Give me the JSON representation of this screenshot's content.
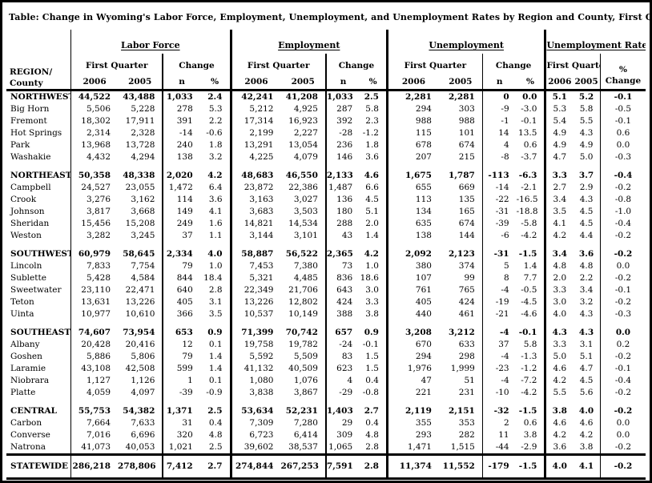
{
  "title": "Table:  Change in Wyoming's Labor Force, Employment, Unemployment, and Unemployment Rates by Region and County, First Quarter 2006",
  "header": {
    "region_line1": "REGION/",
    "region_line2": "County",
    "groups": [
      {
        "label": "Labor Force",
        "sub1": "First Quarter",
        "sub2": "Change",
        "cols": [
          "2006",
          "2005",
          "n",
          "%"
        ]
      },
      {
        "label": "Employment",
        "sub1": "First Quarter",
        "sub2": "Change",
        "cols": [
          "2006",
          "2005",
          "n",
          "%"
        ]
      },
      {
        "label": "Unemployment",
        "sub1": "First Quarter",
        "sub2": "Change",
        "cols": [
          "2006",
          "2005",
          "n",
          "%"
        ]
      },
      {
        "label": "Unemployment Rate",
        "sub1": "First Quarter",
        "sub2": "%",
        "sub2_line2": "Change",
        "cols": [
          "2006",
          "2005"
        ]
      }
    ]
  },
  "sections": [
    {
      "region": [
        "NORTHWEST",
        "44,522",
        "43,488",
        "1,033",
        "2.4",
        "42,241",
        "41,208",
        "1,033",
        "2.5",
        "2,281",
        "2,281",
        "0",
        "0.0",
        "5.1",
        "5.2",
        "-0.1"
      ],
      "counties": [
        [
          "Big Horn",
          "5,506",
          "5,228",
          "278",
          "5.3",
          "5,212",
          "4,925",
          "287",
          "5.8",
          "294",
          "303",
          "-9",
          "-3.0",
          "5.3",
          "5.8",
          "-0.5"
        ],
        [
          "Fremont",
          "18,302",
          "17,911",
          "391",
          "2.2",
          "17,314",
          "16,923",
          "392",
          "2.3",
          "988",
          "988",
          "-1",
          "-0.1",
          "5.4",
          "5.5",
          "-0.1"
        ],
        [
          "Hot Springs",
          "2,314",
          "2,328",
          "-14",
          "-0.6",
          "2,199",
          "2,227",
          "-28",
          "-1.2",
          "115",
          "101",
          "14",
          "13.5",
          "4.9",
          "4.3",
          "0.6"
        ],
        [
          "Park",
          "13,968",
          "13,728",
          "240",
          "1.8",
          "13,291",
          "13,054",
          "236",
          "1.8",
          "678",
          "674",
          "4",
          "0.6",
          "4.9",
          "4.9",
          "0.0"
        ],
        [
          "Washakie",
          "4,432",
          "4,294",
          "138",
          "3.2",
          "4,225",
          "4,079",
          "146",
          "3.6",
          "207",
          "215",
          "-8",
          "-3.7",
          "4.7",
          "5.0",
          "-0.3"
        ]
      ]
    },
    {
      "region": [
        "NORTHEAST",
        "50,358",
        "48,338",
        "2,020",
        "4.2",
        "48,683",
        "46,550",
        "2,133",
        "4.6",
        "1,675",
        "1,787",
        "-113",
        "-6.3",
        "3.3",
        "3.7",
        "-0.4"
      ],
      "counties": [
        [
          "Campbell",
          "24,527",
          "23,055",
          "1,472",
          "6.4",
          "23,872",
          "22,386",
          "1,487",
          "6.6",
          "655",
          "669",
          "-14",
          "-2.1",
          "2.7",
          "2.9",
          "-0.2"
        ],
        [
          "Crook",
          "3,276",
          "3,162",
          "114",
          "3.6",
          "3,163",
          "3,027",
          "136",
          "4.5",
          "113",
          "135",
          "-22",
          "-16.5",
          "3.4",
          "4.3",
          "-0.8"
        ],
        [
          "Johnson",
          "3,817",
          "3,668",
          "149",
          "4.1",
          "3,683",
          "3,503",
          "180",
          "5.1",
          "134",
          "165",
          "-31",
          "-18.8",
          "3.5",
          "4.5",
          "-1.0"
        ],
        [
          "Sheridan",
          "15,456",
          "15,208",
          "249",
          "1.6",
          "14,821",
          "14,534",
          "288",
          "2.0",
          "635",
          "674",
          "-39",
          "-5.8",
          "4.1",
          "4.5",
          "-0.4"
        ],
        [
          "Weston",
          "3,282",
          "3,245",
          "37",
          "1.1",
          "3,144",
          "3,101",
          "43",
          "1.4",
          "138",
          "144",
          "-6",
          "-4.2",
          "4.2",
          "4.4",
          "-0.2"
        ]
      ]
    },
    {
      "region": [
        "SOUTHWEST",
        "60,979",
        "58,645",
        "2,334",
        "4.0",
        "58,887",
        "56,522",
        "2,365",
        "4.2",
        "2,092",
        "2,123",
        "-31",
        "-1.5",
        "3.4",
        "3.6",
        "-0.2"
      ],
      "counties": [
        [
          "Lincoln",
          "7,833",
          "7,754",
          "79",
          "1.0",
          "7,453",
          "7,380",
          "73",
          "1.0",
          "380",
          "374",
          "5",
          "1.4",
          "4.8",
          "4.8",
          "0.0"
        ],
        [
          "Sublette",
          "5,428",
          "4,584",
          "844",
          "18.4",
          "5,321",
          "4,485",
          "836",
          "18.6",
          "107",
          "99",
          "8",
          "7.7",
          "2.0",
          "2.2",
          "-0.2"
        ],
        [
          "Sweetwater",
          "23,110",
          "22,471",
          "640",
          "2.8",
          "22,349",
          "21,706",
          "643",
          "3.0",
          "761",
          "765",
          "-4",
          "-0.5",
          "3.3",
          "3.4",
          "-0.1"
        ],
        [
          "Teton",
          "13,631",
          "13,226",
          "405",
          "3.1",
          "13,226",
          "12,802",
          "424",
          "3.3",
          "405",
          "424",
          "-19",
          "-4.5",
          "3.0",
          "3.2",
          "-0.2"
        ],
        [
          "Uinta",
          "10,977",
          "10,610",
          "366",
          "3.5",
          "10,537",
          "10,149",
          "388",
          "3.8",
          "440",
          "461",
          "-21",
          "-4.6",
          "4.0",
          "4.3",
          "-0.3"
        ]
      ]
    },
    {
      "region": [
        "SOUTHEAST",
        "74,607",
        "73,954",
        "653",
        "0.9",
        "71,399",
        "70,742",
        "657",
        "0.9",
        "3,208",
        "3,212",
        "-4",
        "-0.1",
        "4.3",
        "4.3",
        "0.0"
      ],
      "counties": [
        [
          "Albany",
          "20,428",
          "20,416",
          "12",
          "0.1",
          "19,758",
          "19,782",
          "-24",
          "-0.1",
          "670",
          "633",
          "37",
          "5.8",
          "3.3",
          "3.1",
          "0.2"
        ],
        [
          "Goshen",
          "5,886",
          "5,806",
          "79",
          "1.4",
          "5,592",
          "5,509",
          "83",
          "1.5",
          "294",
          "298",
          "-4",
          "-1.3",
          "5.0",
          "5.1",
          "-0.2"
        ],
        [
          "Laramie",
          "43,108",
          "42,508",
          "599",
          "1.4",
          "41,132",
          "40,509",
          "623",
          "1.5",
          "1,976",
          "1,999",
          "-23",
          "-1.2",
          "4.6",
          "4.7",
          "-0.1"
        ],
        [
          "Niobrara",
          "1,127",
          "1,126",
          "1",
          "0.1",
          "1,080",
          "1,076",
          "4",
          "0.4",
          "47",
          "51",
          "-4",
          "-7.2",
          "4.2",
          "4.5",
          "-0.4"
        ],
        [
          "Platte",
          "4,059",
          "4,097",
          "-39",
          "-0.9",
          "3,838",
          "3,867",
          "-29",
          "-0.8",
          "221",
          "231",
          "-10",
          "-4.2",
          "5.5",
          "5.6",
          "-0.2"
        ]
      ]
    },
    {
      "region": [
        "CENTRAL",
        "55,753",
        "54,382",
        "1,371",
        "2.5",
        "53,634",
        "52,231",
        "1,403",
        "2.7",
        "2,119",
        "2,151",
        "-32",
        "-1.5",
        "3.8",
        "4.0",
        "-0.2"
      ],
      "counties": [
        [
          "Carbon",
          "7,664",
          "7,633",
          "31",
          "0.4",
          "7,309",
          "7,280",
          "29",
          "0.4",
          "355",
          "353",
          "2",
          "0.6",
          "4.6",
          "4.6",
          "0.0"
        ],
        [
          "Converse",
          "7,016",
          "6,696",
          "320",
          "4.8",
          "6,723",
          "6,414",
          "309",
          "4.8",
          "293",
          "282",
          "11",
          "3.8",
          "4.2",
          "4.2",
          "0.0"
        ],
        [
          "Natrona",
          "41,073",
          "40,053",
          "1,021",
          "2.5",
          "39,602",
          "38,537",
          "1,065",
          "2.8",
          "1,471",
          "1,515",
          "-44",
          "-2.9",
          "3.6",
          "3.8",
          "-0.2"
        ]
      ]
    }
  ],
  "statewide": [
    "STATEWIDE",
    "286,218",
    "278,806",
    "7,412",
    "2.7",
    "274,844",
    "267,253",
    "7,591",
    "2.8",
    "11,374",
    "11,552",
    "-179",
    "-1.5",
    "4.0",
    "4.1",
    "-0.2"
  ]
}
